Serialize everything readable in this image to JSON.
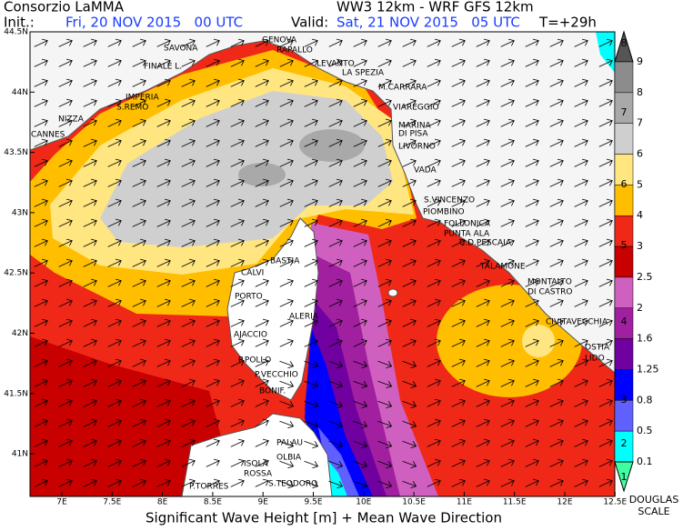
{
  "header": {
    "title_left": "Consorzio LaMMA",
    "title_right": "WW3 12km - WRF GFS 12km",
    "init_label": "Init.:",
    "init_value": "Fri, 20 NOV 2015   00 UTC",
    "valid_label": "Valid:",
    "valid_value": "Sat, 21 NOV 2015   05 UTC",
    "lead": "T=+29h"
  },
  "axes": {
    "lat_labels": [
      "44.5N",
      "44N",
      "43.5N",
      "43N",
      "42.5N",
      "42N",
      "41.5N",
      "41N"
    ],
    "lon_labels": [
      "7E",
      "7.5E",
      "8E",
      "8.5E",
      "9E",
      "9.5E",
      "10E",
      "10.5E",
      "11E",
      "11.5E",
      "12E",
      "12.5E"
    ]
  },
  "places": [
    "SAVONA",
    "GENOVA",
    "RAPALLO",
    "FINALE L.",
    "LEVANTO",
    "LA SPEZIA",
    "IMPERIA",
    "M.CARRARA",
    "S.REMO",
    "VIAREGGIO",
    "NIZZA",
    "MARINA",
    "DI PISA",
    "CANNES",
    "LIVORNO",
    "VADA",
    "S.VINCENZO",
    "PIOMBINO",
    "FOLLONICA",
    "PUNTA ALA",
    "C.D.PESCAIA",
    "BASTIA",
    "CALVI",
    "TALAMONE",
    "MONTALTO",
    "DI CASTRO",
    "PORTO",
    "ALERIA",
    "CIVITAVECCHIA",
    "AJACCIO",
    "OSTIA",
    "LIDO",
    "P.POLLO",
    "P.VECCHIO",
    "BONIF.",
    "PALAU",
    "OLBIA",
    "ISOLA",
    "ROSSA",
    "P.TORRES",
    "S.TEODORO"
  ],
  "legend": {
    "levels": [
      "9",
      "8",
      "7",
      "6",
      "5",
      "4",
      "3",
      "2.5",
      "2",
      "1.6",
      "1.25",
      "0.8",
      "0.5",
      "0.1"
    ],
    "douglas": [
      "8",
      "7",
      "6",
      "5",
      "4",
      "3",
      "2",
      "1"
    ],
    "douglas_title": "DOUGLAS",
    "douglas_subtitle": "SCALE"
  },
  "footer": "Significant Wave Height [m] + Mean Wave Direction"
}
